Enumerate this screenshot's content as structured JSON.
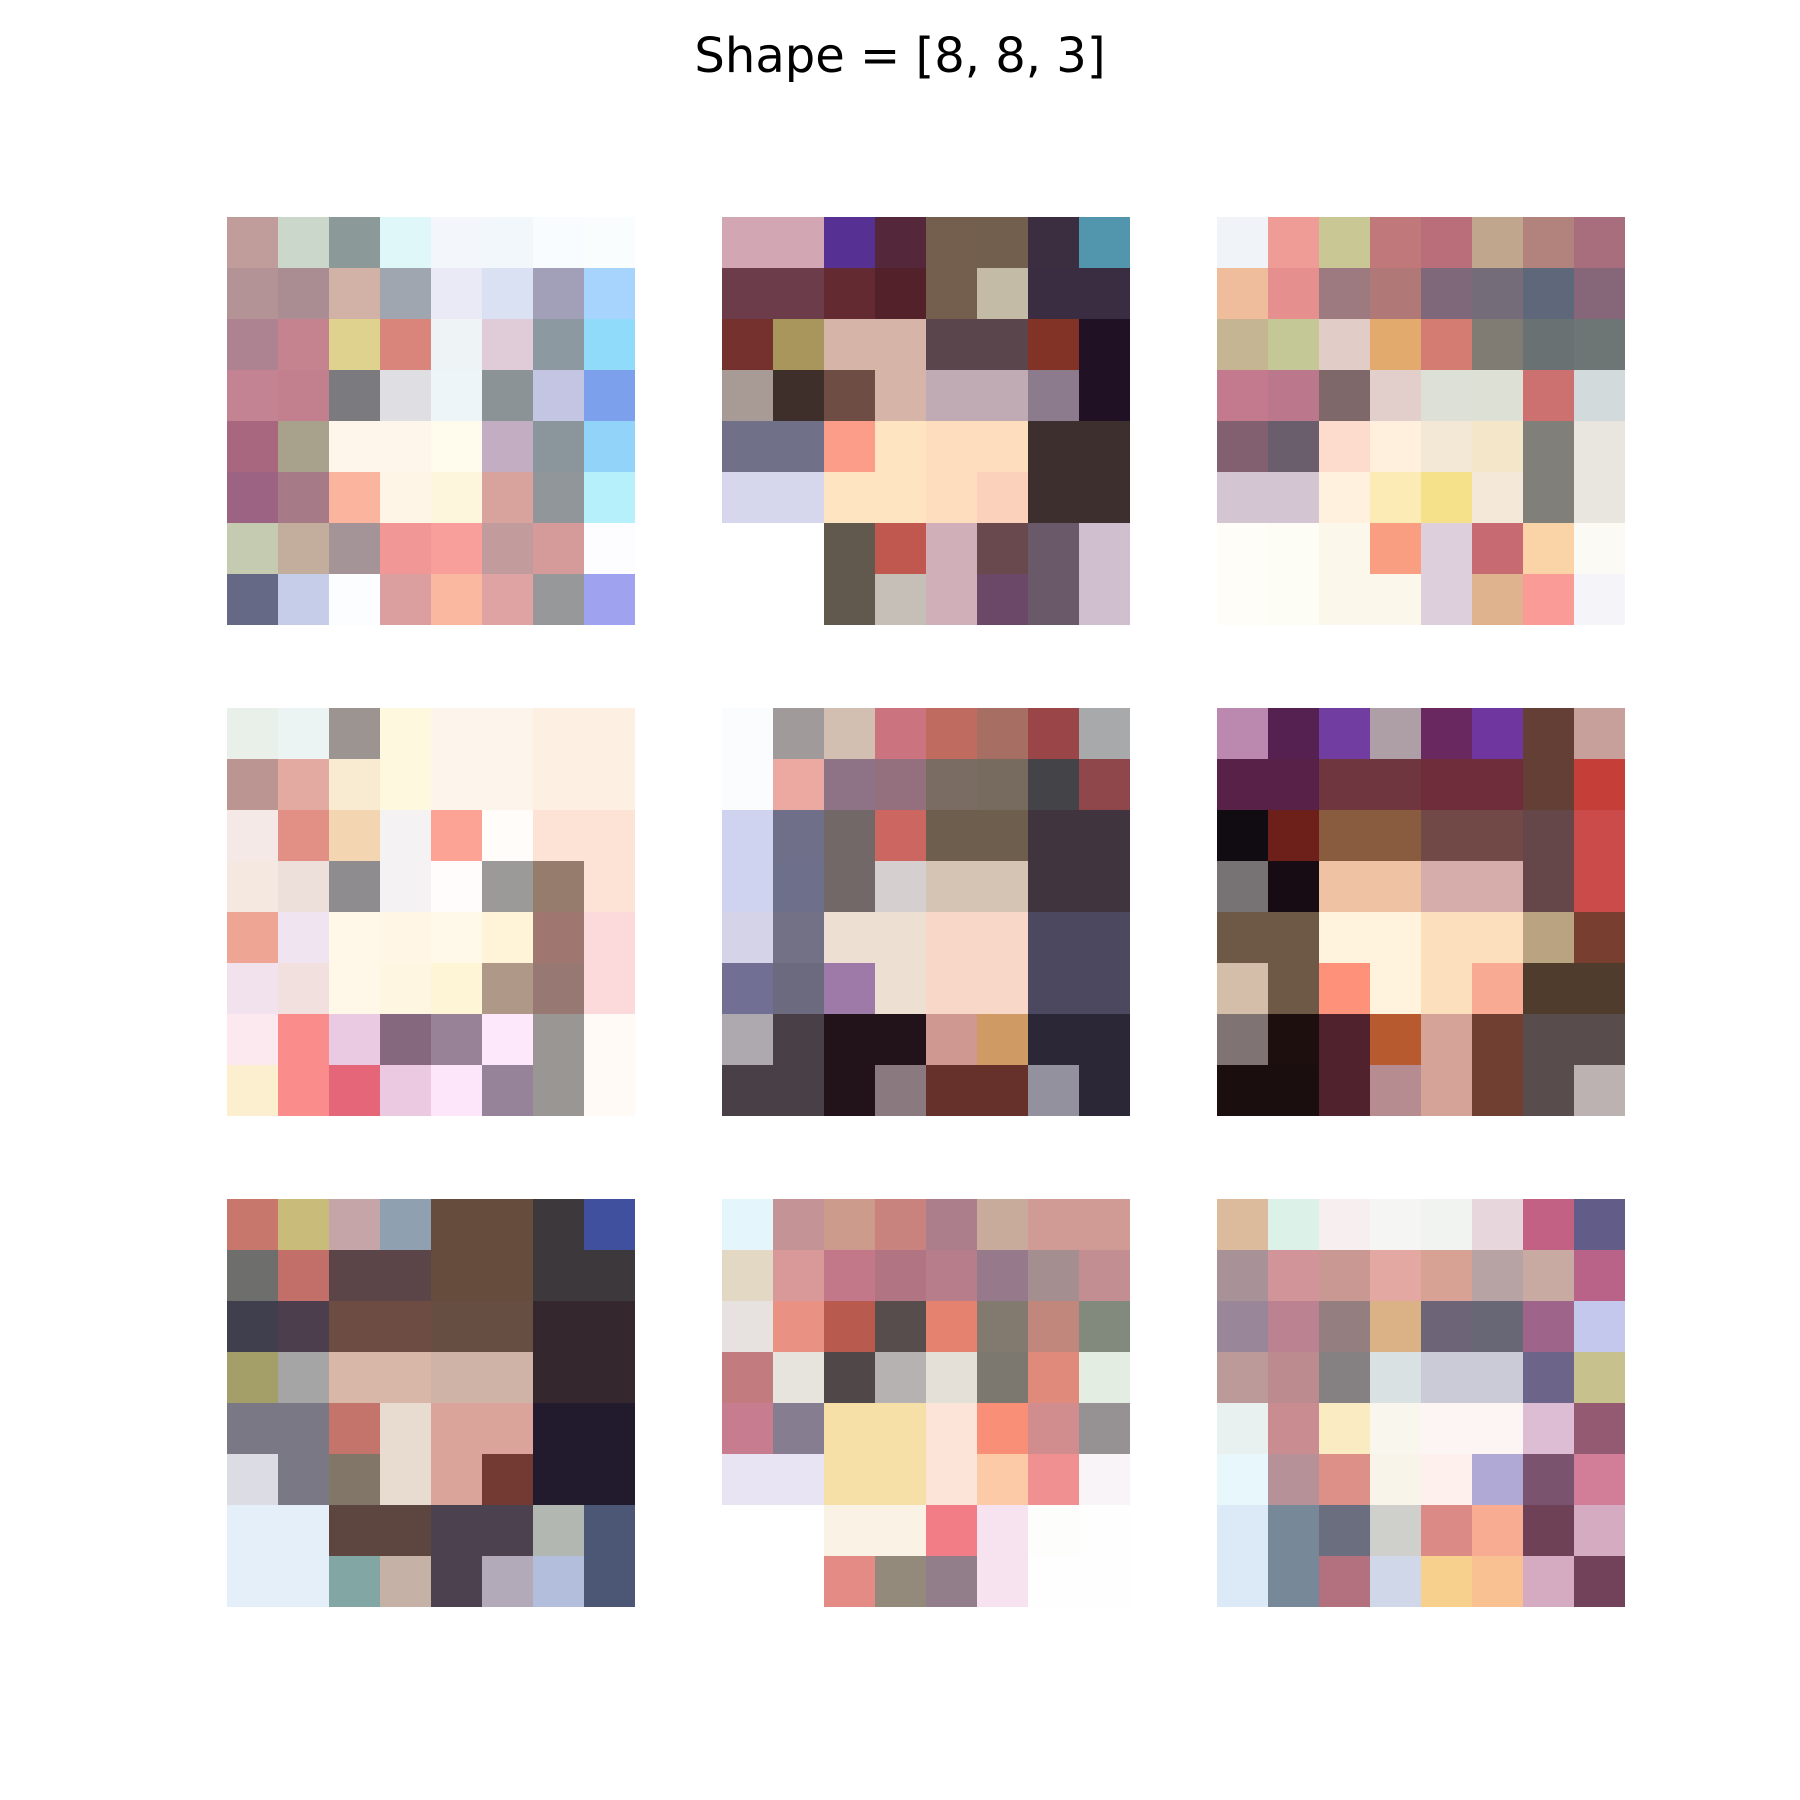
{
  "title": "Shape = [8, 8, 3]",
  "chart_data": {
    "type": "heatmap",
    "title": "Shape = [8, 8, 3]",
    "grid": false,
    "axes_visible": false,
    "layout": "3x3 image grid",
    "panels": [
      {
        "rows": [
          [
            "#c09c9b",
            "#ccd7cb",
            "#8b9999",
            "#e0f7f9",
            "#f3f7fb",
            "#f2f7fb",
            "#f9fcfe",
            "#f9fdfe"
          ],
          [
            "#b39396",
            "#aa8d92",
            "#d2b1a7",
            "#a0a6af",
            "#e9eaf5",
            "#dae1f3",
            "#a2a0b9",
            "#a7d4fd"
          ],
          [
            "#ad8392",
            "#c58390",
            "#dfd28e",
            "#da857c",
            "#eef4f6",
            "#dfccd8",
            "#8c99a1",
            "#91dbfa"
          ],
          [
            "#c48393",
            "#c27f8e",
            "#7b7a7e",
            "#dfdfe3",
            "#eef5f8",
            "#8b9397",
            "#c3c5e3",
            "#7da0ed"
          ],
          [
            "#a9677f",
            "#a8a18b",
            "#fef6ea",
            "#fff6eb",
            "#fffbed",
            "#c2adc2",
            "#8a969b",
            "#92d3fa"
          ],
          [
            "#9c6482",
            "#a67a87",
            "#fbb59f",
            "#fff5e7",
            "#fef5dd",
            "#d9a39d",
            "#91969a",
            "#b6f0fa"
          ],
          [
            "#c4cbb1",
            "#c3ad9c",
            "#a49497",
            "#f19796",
            "#f89e9b",
            "#c29c9c",
            "#d59a9a",
            "#fdfdff"
          ],
          [
            "#656985",
            "#c5cde9",
            "#fcfdff",
            "#dc9fa0",
            "#fbb8a0",
            "#dfa3a4",
            "#979899",
            "#9ea2ef"
          ]
        ]
      },
      {
        "rows": [
          [
            "#d3a6b4",
            "#d3a6b4",
            "#573093",
            "#55273b",
            "#745f4e",
            "#735f4e",
            "#3b2e41",
            "#5296ae"
          ],
          [
            "#6d3c4b",
            "#6d3c4b",
            "#632a31",
            "#522129",
            "#745f4e",
            "#c3bba5",
            "#3a2d41",
            "#3a2d41"
          ],
          [
            "#74312e",
            "#a9965d",
            "#d6b4a7",
            "#d6b4a7",
            "#5a454d",
            "#5a454d",
            "#823325",
            "#211125"
          ],
          [
            "#a89a95",
            "#3e2f2a",
            "#6e4e44",
            "#d6b4a7",
            "#c0aab3",
            "#c0aab3",
            "#8b7b8c",
            "#211125"
          ],
          [
            "#707189",
            "#707189",
            "#fc9d89",
            "#fee4c1",
            "#fdddbd",
            "#fdddbd",
            "#3e2f2f",
            "#3e2f2f"
          ],
          [
            "#d6d6ed",
            "#d6d6ed",
            "#fee4c1",
            "#fee4c1",
            "#fdddbd",
            "#fcd1bb",
            "#3e2f2f",
            "#3e2f2f"
          ],
          [
            "#ffffff",
            "#ffffff",
            "#61584e",
            "#c0584f",
            "#d1afb8",
            "#69494e",
            "#6a5968",
            "#d0bfcf"
          ],
          [
            "#ffffff",
            "#ffffff",
            "#61584e",
            "#c6bfb8",
            "#d1afb8",
            "#6b4868",
            "#6a5968",
            "#d0bfcf"
          ]
        ]
      },
      {
        "rows": [
          [
            "#f0f3f8",
            "#ee9c95",
            "#c9c793",
            "#c1787b",
            "#ba6e7a",
            "#bfa68c",
            "#b2827d",
            "#a86e7d"
          ],
          [
            "#efbc9c",
            "#e58f8f",
            "#9c7a7f",
            "#b17878",
            "#7e6879",
            "#756c7a",
            "#5f687a",
            "#86677a"
          ],
          [
            "#c5b592",
            "#c4c896",
            "#e2ccc8",
            "#e2ab6d",
            "#d57c72",
            "#807c74",
            "#6a7172",
            "#6e7675"
          ],
          [
            "#c37a8f",
            "#bb778b",
            "#7f6869",
            "#e2cecb",
            "#dce0d6",
            "#dce0d5",
            "#cc716f",
            "#d3dadb"
          ],
          [
            "#826070",
            "#6b5e6c",
            "#fedccd",
            "#ffefdd",
            "#f3e8d6",
            "#f3e6c9",
            "#817f7a",
            "#e9e6df"
          ],
          [
            "#d3c5d1",
            "#d3c5d1",
            "#fff1dd",
            "#fdebb6",
            "#f4e18a",
            "#f4e8d8",
            "#817f7a",
            "#e9e6df"
          ],
          [
            "#fffdf8",
            "#fefdf5",
            "#fcf7eb",
            "#f99e81",
            "#ddcfdc",
            "#c86a71",
            "#fad4a6",
            "#fbfaf5"
          ],
          [
            "#fffdf8",
            "#fefdf5",
            "#fcf7eb",
            "#fcf7eb",
            "#ddcfdc",
            "#dfb38d",
            "#fa9b97",
            "#f4f4f9"
          ]
        ]
      },
      {
        "rows": [
          [
            "#e9f0ea",
            "#ebf3f3",
            "#9b9491",
            "#fdf8de",
            "#fdf5ec",
            "#fdf5ec",
            "#fdf0e2",
            "#fdf0e2"
          ],
          [
            "#bb9591",
            "#e3aaa2",
            "#f9ebd1",
            "#fdf8de",
            "#fdf5ec",
            "#fdf5ec",
            "#fdf0e2",
            "#fdf0e2"
          ],
          [
            "#f4e9e6",
            "#e28f86",
            "#f3d5b2",
            "#f5f2f4",
            "#fca395",
            "#fffcf9",
            "#fce3d5",
            "#fce3d5"
          ],
          [
            "#f5e8e1",
            "#eddfd9",
            "#8e8c8e",
            "#f5f2f4",
            "#fffcfb",
            "#9b9a99",
            "#967c6d",
            "#fce3d5"
          ],
          [
            "#eea594",
            "#f0e4f0",
            "#fff7e7",
            "#fff6e5",
            "#fef9e9",
            "#fff4d7",
            "#a07671",
            "#fcdadb"
          ],
          [
            "#f1e2ed",
            "#f2e0de",
            "#fff7e7",
            "#fff6e1",
            "#fef5d7",
            "#b09888",
            "#987872",
            "#fcdadb"
          ],
          [
            "#fbe9ef",
            "#fa8d8c",
            "#e9cae2",
            "#85677e",
            "#978297",
            "#fce8fa",
            "#999693",
            "#fffaf6"
          ],
          [
            "#fcefd0",
            "#fa8d8c",
            "#e66679",
            "#ebc9e0",
            "#fde6fa",
            "#968299",
            "#999693",
            "#fffaf6"
          ]
        ]
      },
      {
        "rows": [
          [
            "#fbfcfe",
            "#a19a9b",
            "#d3beb2",
            "#cb737f",
            "#bf6b60",
            "#a76f64",
            "#9a4649",
            "#a8a9aa"
          ],
          [
            "#fbfcfe",
            "#eca9a2",
            "#8d7385",
            "#94707f",
            "#7a6c63",
            "#776b60",
            "#444348",
            "#8f474c"
          ],
          [
            "#d0d3ef",
            "#6f6f89",
            "#736868",
            "#cb6660",
            "#6d5e4e",
            "#6d5e4e",
            "#40353f",
            "#40353f"
          ],
          [
            "#d0d3ef",
            "#6d6f8b",
            "#736868",
            "#d6cfd0",
            "#d5c3b4",
            "#d5c3b4",
            "#40353f",
            "#40353f"
          ],
          [
            "#d5d3e8",
            "#727185",
            "#eedfd3",
            "#eedfd3",
            "#f8d7c9",
            "#f8d7c9",
            "#4c485f",
            "#4c485f"
          ],
          [
            "#716f94",
            "#6c6a7e",
            "#9e7aa8",
            "#eedfd3",
            "#f8d7c9",
            "#f8d7c9",
            "#4c485f",
            "#4c485f"
          ],
          [
            "#aea9ae",
            "#483f47",
            "#22131a",
            "#22131a",
            "#cf9992",
            "#cf9a64",
            "#2c2737",
            "#2c2737"
          ],
          [
            "#483f47",
            "#483f47",
            "#22131a",
            "#8a797f",
            "#66312b",
            "#66312b",
            "#94919f",
            "#2c2737"
          ]
        ]
      },
      {
        "rows": [
          [
            "#bb88af",
            "#552150",
            "#713da1",
            "#ae9ea5",
            "#6a2860",
            "#6f369f",
            "#633f36",
            "#c79f9b"
          ],
          [
            "#582148",
            "#582148",
            "#6f363f",
            "#6f363f",
            "#6f2c3b",
            "#6f2c3b",
            "#633f36",
            "#c53f38"
          ],
          [
            "#110c12",
            "#6c2019",
            "#895c3f",
            "#895c3f",
            "#714947",
            "#714947",
            "#664749",
            "#cb4b4b"
          ],
          [
            "#777273",
            "#180c14",
            "#efc2a3",
            "#efc2a3",
            "#d6adaa",
            "#d6adaa",
            "#664749",
            "#cb4b4b"
          ],
          [
            "#6e5946",
            "#6e5946",
            "#fff3dd",
            "#fff3dd",
            "#fcdfbc",
            "#fcdfbc",
            "#b9a381",
            "#783f30"
          ],
          [
            "#d4beaa",
            "#6e5946",
            "#fd9179",
            "#fff3dd",
            "#fcdfbc",
            "#f9aa92",
            "#503c2d",
            "#503c2d"
          ],
          [
            "#807373",
            "#1c0f0e",
            "#50222d",
            "#b85a2f",
            "#d5a397",
            "#713f31",
            "#584c4c",
            "#584c4c"
          ],
          [
            "#1a0e0e",
            "#1a0e0e",
            "#50222d",
            "#b78c91",
            "#d5a397",
            "#713f31",
            "#584c4c",
            "#bdb2b2"
          ]
        ]
      },
      {
        "rows": [
          [
            "#c8776c",
            "#c9bc7a",
            "#c5a5a8",
            "#8fa1b0",
            "#664c3c",
            "#664c3c",
            "#3d383c",
            "#414f9f"
          ],
          [
            "#6e6e6c",
            "#c26e69",
            "#5b4549",
            "#5b4549",
            "#664c3c",
            "#664c3c",
            "#3d383c",
            "#3d383c"
          ],
          [
            "#3f3f4e",
            "#4d3e4e",
            "#6d4d43",
            "#6d4d43",
            "#674e43",
            "#674e43",
            "#34272e",
            "#34272e"
          ],
          [
            "#a49e68",
            "#a5a5a5",
            "#d8b7a9",
            "#d8b7a9",
            "#cfb3a7",
            "#cfb3a7",
            "#34272e",
            "#34272e"
          ],
          [
            "#7b7886",
            "#7b7886",
            "#c4746a",
            "#e7dccf",
            "#dba49b",
            "#dba49b",
            "#221a2d",
            "#221a2d"
          ],
          [
            "#dcdce5",
            "#7b7886",
            "#817668",
            "#e7dccf",
            "#dba49b",
            "#733a33",
            "#221a2d",
            "#221a2d"
          ],
          [
            "#e4eff9",
            "#e4eff9",
            "#5c463f",
            "#5c463f",
            "#4b414f",
            "#4b414f",
            "#b3b7b1",
            "#4c5675"
          ],
          [
            "#e4eff9",
            "#e4eff9",
            "#82a6a3",
            "#c6b1a7",
            "#4b414f",
            "#b3aab9",
            "#b3bddc",
            "#4c5675"
          ]
        ]
      },
      {
        "rows": [
          [
            "#e4f5fb",
            "#c49396",
            "#cc9b8c",
            "#c8837f",
            "#ac7d8a",
            "#c8ab9b",
            "#cf9b94",
            "#cf9b94"
          ],
          [
            "#e3d8c4",
            "#da9999",
            "#c27888",
            "#b07482",
            "#b77d8b",
            "#967a8c",
            "#a48e8f",
            "#c28e92"
          ],
          [
            "#e7e2df",
            "#e99283",
            "#b85a4d",
            "#574d4d",
            "#e5826f",
            "#827a6f",
            "#c2877c",
            "#818a7d"
          ],
          [
            "#c27b7e",
            "#e7e3dd",
            "#504748",
            "#b7b2b2",
            "#e4e0d8",
            "#7c7870",
            "#e08a7c",
            "#e3ede2"
          ],
          [
            "#c87c8f",
            "#877d91",
            "#f6e0a8",
            "#f6e0a8",
            "#fde4d8",
            "#f88f76",
            "#d18c8d",
            "#969293"
          ],
          [
            "#e9e4f3",
            "#e9e4f3",
            "#f6e0a8",
            "#f6e0a8",
            "#fde4d8",
            "#fdcaa8",
            "#f09090",
            "#f8f4f7"
          ],
          [
            "#ffffff",
            "#ffffff",
            "#f9f2e5",
            "#f9f2e5",
            "#f37d86",
            "#f7e3ef",
            "#fdfdfc",
            "#fefefe"
          ],
          [
            "#ffffff",
            "#ffffff",
            "#e38b84",
            "#938a7b",
            "#927e8a",
            "#f7e3ef",
            "#fefefe",
            "#fefefe"
          ]
        ]
      },
      {
        "rows": [
          [
            "#dbbb9b",
            "#dcf1e8",
            "#f7eeef",
            "#f5f5f3",
            "#f0f3f0",
            "#e7d7dc",
            "#c26183",
            "#625c88"
          ],
          [
            "#a89298",
            "#d19498",
            "#ca9893",
            "#e3a8a1",
            "#d7a194",
            "#b7a3a4",
            "#c9aaa3",
            "#b96389"
          ],
          [
            "#9a8699",
            "#bb8391",
            "#957e7f",
            "#dbb186",
            "#6e6477",
            "#676776",
            "#9e6489",
            "#c4c8ec"
          ],
          [
            "#bd9a9a",
            "#bb8b90",
            "#858081",
            "#d9e1e3",
            "#cbcbd8",
            "#cbcbd8",
            "#6d6589",
            "#c7c18e"
          ],
          [
            "#e8f1f0",
            "#c98d91",
            "#fbebc3",
            "#f9f6ee",
            "#fdf5f3",
            "#fdf5f3",
            "#dcbdd4",
            "#935a71"
          ],
          [
            "#e7f7fb",
            "#b69298",
            "#dd9088",
            "#f9f4e9",
            "#fdf0ed",
            "#b0a8d5",
            "#7a546f",
            "#d27e99"
          ],
          [
            "#dbeaf6",
            "#778998",
            "#6b6e7f",
            "#cfcfcb",
            "#db8a86",
            "#f8ac92",
            "#6e4157",
            "#d5abc1"
          ],
          [
            "#dbeaf6",
            "#778998",
            "#b3707e",
            "#cfd7e8",
            "#f7d08d",
            "#f9c191",
            "#d5abc1",
            "#72425a"
          ]
        ]
      }
    ]
  }
}
